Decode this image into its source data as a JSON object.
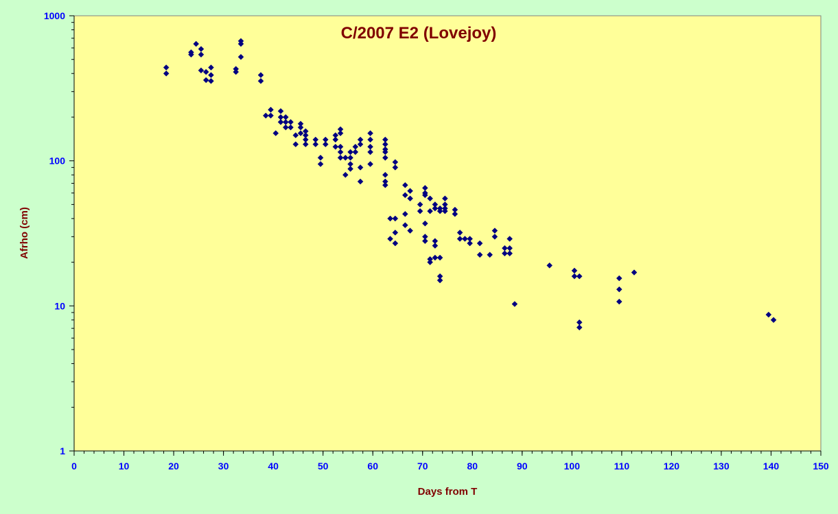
{
  "chart_data": {
    "type": "scatter",
    "title": "C/2007 E2 (Lovejoy)",
    "xlabel": "Days from T",
    "ylabel": "Afrho (cm)",
    "xlim": [
      0,
      150
    ],
    "ylim": [
      1,
      1000
    ],
    "y_scale": "log",
    "x_ticks": [
      0,
      10,
      20,
      30,
      40,
      50,
      60,
      70,
      80,
      90,
      100,
      110,
      120,
      130,
      140,
      150
    ],
    "y_ticks": [
      1,
      10,
      100,
      1000
    ],
    "y_tick_labels": [
      "1",
      "10",
      "100",
      "1000"
    ],
    "grid": false,
    "legend": "none",
    "colors": {
      "marker": "#000080",
      "plot_bg": "#ffff99",
      "page_bg": "#ccffcc",
      "title": "#800000",
      "ticks": "#0000ff"
    },
    "points": [
      [
        18.5,
        440
      ],
      [
        18.5,
        400
      ],
      [
        23.5,
        560
      ],
      [
        23.5,
        540
      ],
      [
        24.5,
        640
      ],
      [
        25.5,
        590
      ],
      [
        25.5,
        540
      ],
      [
        25.5,
        420
      ],
      [
        26.5,
        410
      ],
      [
        26.5,
        360
      ],
      [
        27.5,
        440
      ],
      [
        27.5,
        390
      ],
      [
        27.5,
        355
      ],
      [
        32.5,
        430
      ],
      [
        32.5,
        410
      ],
      [
        33.5,
        670
      ],
      [
        33.5,
        640
      ],
      [
        33.5,
        520
      ],
      [
        37.5,
        390
      ],
      [
        37.5,
        355
      ],
      [
        38.5,
        205
      ],
      [
        39.5,
        225
      ],
      [
        39.5,
        205
      ],
      [
        40.5,
        155
      ],
      [
        41.5,
        220
      ],
      [
        41.5,
        200
      ],
      [
        41.5,
        185
      ],
      [
        42.5,
        200
      ],
      [
        42.5,
        185
      ],
      [
        42.5,
        170
      ],
      [
        43.5,
        185
      ],
      [
        43.5,
        170
      ],
      [
        44.5,
        150
      ],
      [
        44.5,
        130
      ],
      [
        45.5,
        180
      ],
      [
        45.5,
        170
      ],
      [
        45.5,
        155
      ],
      [
        46.5,
        160
      ],
      [
        46.5,
        150
      ],
      [
        46.5,
        140
      ],
      [
        46.5,
        130
      ],
      [
        48.5,
        140
      ],
      [
        48.5,
        130
      ],
      [
        49.5,
        105
      ],
      [
        49.5,
        95
      ],
      [
        50.5,
        140
      ],
      [
        50.5,
        130
      ],
      [
        52.5,
        150
      ],
      [
        52.5,
        140
      ],
      [
        52.5,
        125
      ],
      [
        53.5,
        165
      ],
      [
        53.5,
        155
      ],
      [
        53.5,
        125
      ],
      [
        53.5,
        115
      ],
      [
        53.5,
        105
      ],
      [
        54.5,
        105
      ],
      [
        54.5,
        80
      ],
      [
        55.5,
        115
      ],
      [
        55.5,
        105
      ],
      [
        55.5,
        95
      ],
      [
        55.5,
        88
      ],
      [
        56.5,
        125
      ],
      [
        56.5,
        115
      ],
      [
        57.5,
        140
      ],
      [
        57.5,
        130
      ],
      [
        57.5,
        90
      ],
      [
        57.5,
        72
      ],
      [
        59.5,
        155
      ],
      [
        59.5,
        140
      ],
      [
        59.5,
        125
      ],
      [
        59.5,
        115
      ],
      [
        59.5,
        95
      ],
      [
        62.5,
        140
      ],
      [
        62.5,
        130
      ],
      [
        62.5,
        120
      ],
      [
        62.5,
        115
      ],
      [
        62.5,
        105
      ],
      [
        62.5,
        80
      ],
      [
        62.5,
        72
      ],
      [
        62.5,
        68
      ],
      [
        63.5,
        40
      ],
      [
        63.5,
        29
      ],
      [
        64.5,
        98
      ],
      [
        64.5,
        90
      ],
      [
        64.5,
        40
      ],
      [
        64.5,
        32
      ],
      [
        64.5,
        27
      ],
      [
        66.5,
        68
      ],
      [
        66.5,
        58
      ],
      [
        66.5,
        43
      ],
      [
        66.5,
        36
      ],
      [
        67.5,
        62
      ],
      [
        67.5,
        55
      ],
      [
        67.5,
        33
      ],
      [
        69.5,
        50
      ],
      [
        69.5,
        45
      ],
      [
        70.5,
        65
      ],
      [
        70.5,
        60
      ],
      [
        70.5,
        58
      ],
      [
        70.5,
        37
      ],
      [
        70.5,
        30
      ],
      [
        70.5,
        28
      ],
      [
        71.5,
        55
      ],
      [
        71.5,
        45
      ],
      [
        71.5,
        21
      ],
      [
        71.5,
        20
      ],
      [
        72.5,
        50
      ],
      [
        72.5,
        47
      ],
      [
        72.5,
        28
      ],
      [
        72.5,
        26
      ],
      [
        72.5,
        21.5
      ],
      [
        73.5,
        47
      ],
      [
        73.5,
        45
      ],
      [
        73.5,
        21.5
      ],
      [
        73.5,
        16
      ],
      [
        73.5,
        15
      ],
      [
        74.5,
        55
      ],
      [
        74.5,
        50
      ],
      [
        74.5,
        47
      ],
      [
        74.5,
        45
      ],
      [
        76.5,
        46
      ],
      [
        76.5,
        43
      ],
      [
        77.5,
        32
      ],
      [
        77.5,
        29
      ],
      [
        78.5,
        29
      ],
      [
        79.5,
        29
      ],
      [
        79.5,
        27
      ],
      [
        81.5,
        27
      ],
      [
        81.5,
        22.5
      ],
      [
        83.5,
        22.5
      ],
      [
        84.5,
        33
      ],
      [
        84.5,
        30
      ],
      [
        86.5,
        25
      ],
      [
        86.5,
        23
      ],
      [
        87.5,
        29
      ],
      [
        87.5,
        25
      ],
      [
        87.5,
        23
      ],
      [
        88.5,
        10.3
      ],
      [
        95.5,
        19
      ],
      [
        100.5,
        17.5
      ],
      [
        100.5,
        16
      ],
      [
        101.5,
        16
      ],
      [
        101.5,
        7.7
      ],
      [
        101.5,
        7.1
      ],
      [
        109.5,
        15.5
      ],
      [
        109.5,
        13
      ],
      [
        109.5,
        10.7
      ],
      [
        112.5,
        17
      ],
      [
        139.5,
        8.7
      ],
      [
        140.5,
        8
      ]
    ]
  }
}
